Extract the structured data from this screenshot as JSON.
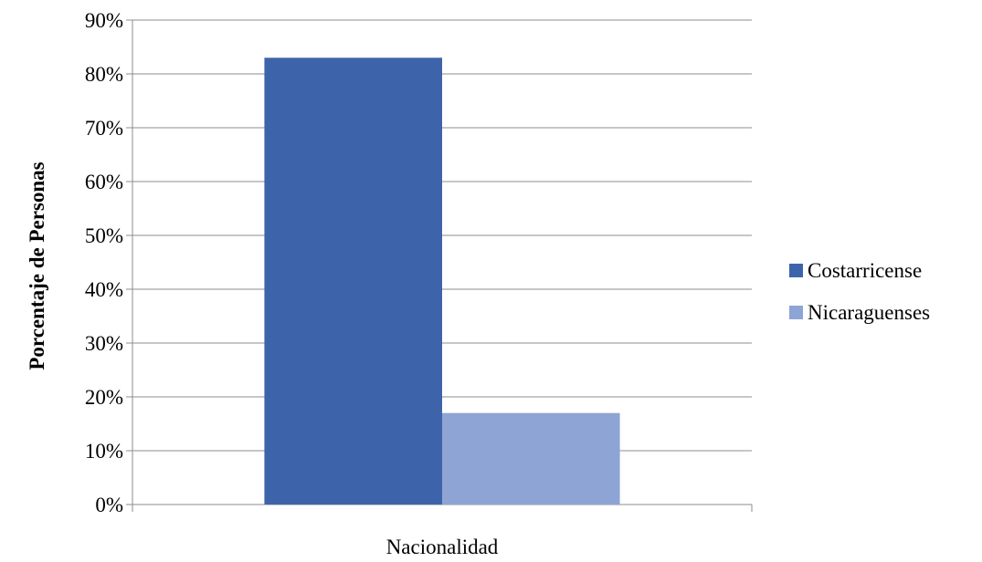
{
  "chart_data": {
    "type": "bar",
    "xlabel": "Nacionalidad",
    "ylabel": "Porcentaje de Personas",
    "category": "Nacionalidad",
    "ylim": [
      0,
      90
    ],
    "yticks": [
      "0%",
      "10%",
      "20%",
      "30%",
      "40%",
      "50%",
      "60%",
      "70%",
      "80%",
      "90%"
    ],
    "grid": true,
    "legend_position": "right",
    "series": [
      {
        "name": "Costarricense",
        "value": 83,
        "color": "#3d64ab"
      },
      {
        "name": "Nicaraguenses",
        "value": 17,
        "color": "#8ea4d4"
      }
    ]
  }
}
